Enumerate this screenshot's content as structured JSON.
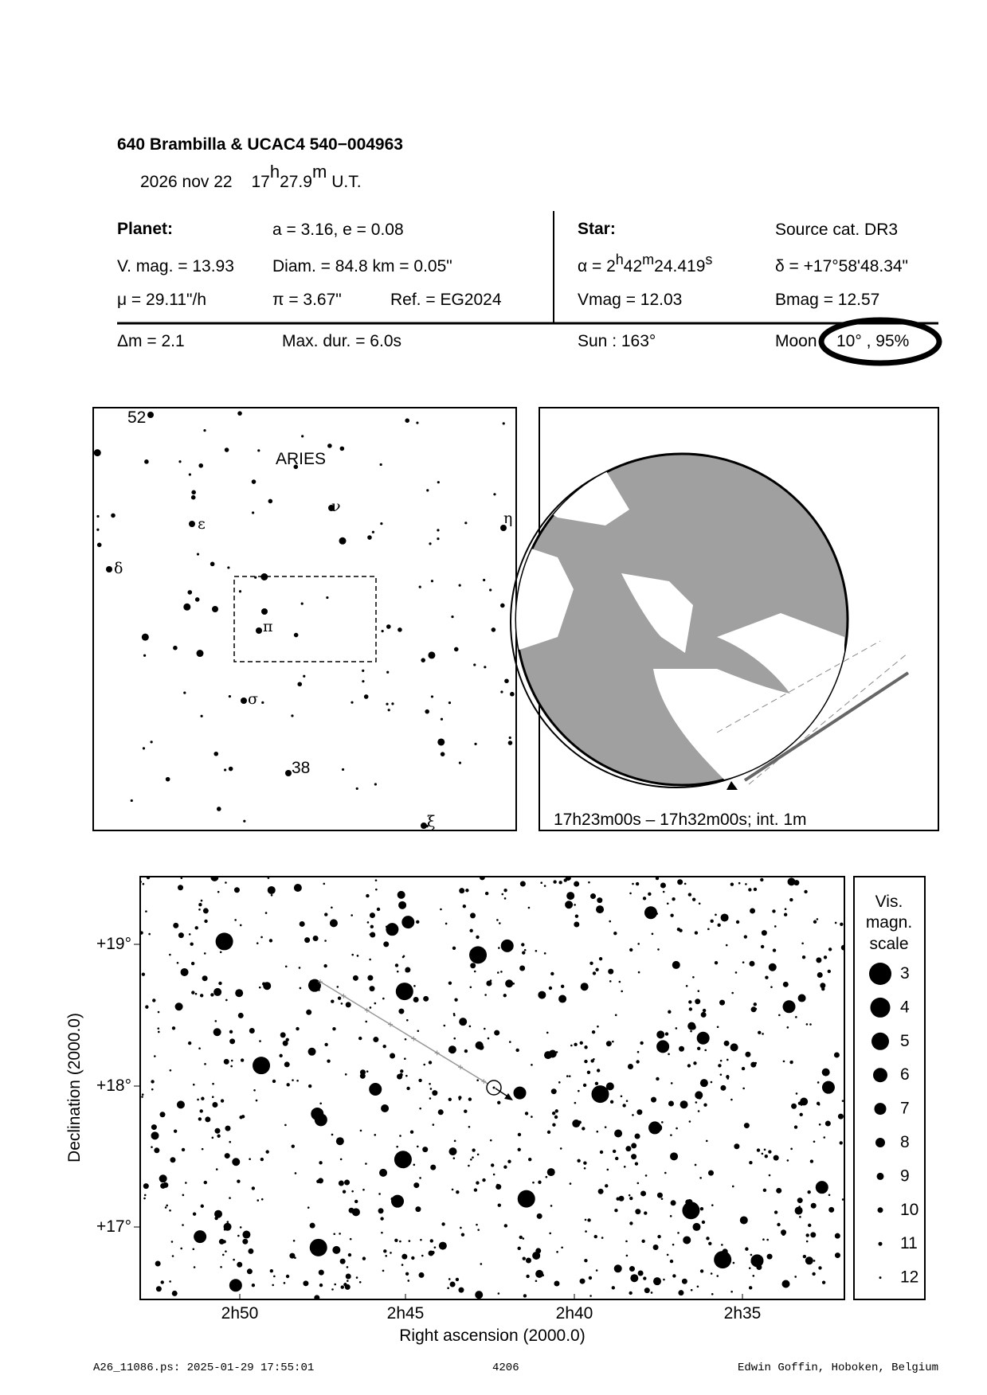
{
  "header": {
    "title": "640 Brambilla  &  UCAC4 540−004963",
    "date": "2026 nov 22",
    "time_h": "17",
    "time_h_sup": "h",
    "time_m": "27.9",
    "time_m_sup": "m",
    "time_suffix": "U.T."
  },
  "planet": {
    "heading": "Planet:",
    "orbit": "a = 3.16, e = 0.08",
    "vmag": "V. mag. = 13.93",
    "diam": "Diam. = 84.8 km = 0.05\"",
    "mu": "μ =  29.11\"/h",
    "parallax": "π =  3.67\"",
    "ref": "Ref. = EG2024"
  },
  "star": {
    "heading": "Star:",
    "source": "Source cat.  DR3",
    "ra_prefix": "α =  2",
    "ra_h": "h",
    "ra_min": "42",
    "ra_m": "m",
    "ra_sec": "24.419",
    "ra_s": "s",
    "dec": "δ = +17°58'48.34\"",
    "vmag": "Vmag = 12.03",
    "bmag": "Bmag = 12.57"
  },
  "circumstances": {
    "dm": "Δm = 2.1",
    "maxdur": "Max. dur. = 6.0s",
    "sun": "Sun : 163°",
    "moon_label": "Moon",
    "moon_value": "10° , 95%"
  },
  "finder": {
    "constellation": "ARIES",
    "labels": [
      "52",
      "ν",
      "ε",
      "η",
      "δ",
      "π",
      "σ",
      "38",
      "ξ"
    ]
  },
  "earth_map": {
    "caption": "17h23m00s – 17h32m00s; int.  1m",
    "land_color": "#a0a0a0",
    "sea_color": "#ffffff"
  },
  "star_chart": {
    "xlabel": "Right ascension (2000.0)",
    "ylabel": "Declination (2000.0)",
    "x_ticks": [
      "2h50",
      "2h45",
      "2h40",
      "2h35"
    ],
    "y_ticks": [
      "+19°",
      "+18°",
      "+17°"
    ],
    "path_color": "#999999"
  },
  "legend": {
    "title_1": "Vis.",
    "title_2": "magn.",
    "title_3": "scale",
    "magnitudes": [
      "3",
      "4",
      "5",
      "6",
      "7",
      "8",
      "9",
      "10",
      "11",
      "12"
    ]
  },
  "footer": {
    "file": "A26_11086.ps: 2025-01-29 17:55:01",
    "number": "4206",
    "author": "Edwin Goffin, Hoboken, Belgium"
  }
}
